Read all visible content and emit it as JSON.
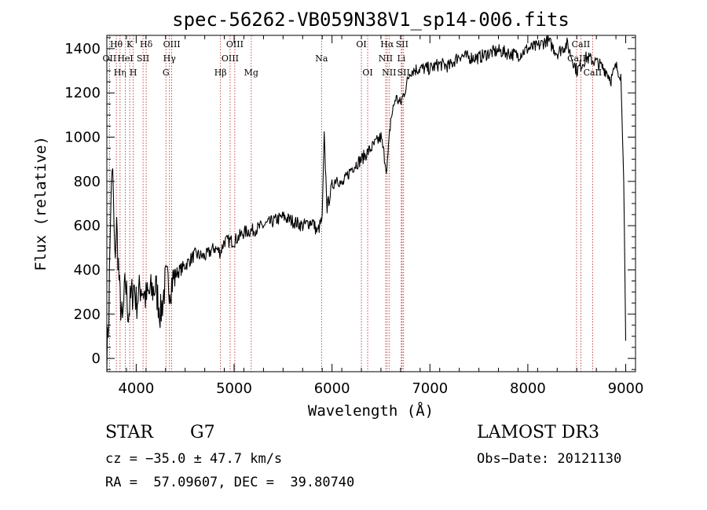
{
  "chart_data": {
    "type": "line",
    "title": "spec-56262-VB059N38V1_sp14-006.fits",
    "xlabel": "Wavelength (Å)",
    "ylabel": "Flux (relative)",
    "xlim": [
      3700,
      9100
    ],
    "ylim": [
      -60,
      1460
    ],
    "xticks": [
      4000,
      5000,
      6000,
      7000,
      8000,
      9000
    ],
    "yticks": [
      0,
      200,
      400,
      600,
      800,
      1000,
      1200,
      1400
    ],
    "series": [
      {
        "name": "flux",
        "x": [
          3700,
          3720,
          3740,
          3760,
          3780,
          3800,
          3830,
          3860,
          3890,
          3920,
          3950,
          3980,
          4000,
          4050,
          4100,
          4150,
          4200,
          4250,
          4300,
          4350,
          4400,
          4500,
          4600,
          4700,
          4800,
          4860,
          4900,
          5000,
          5100,
          5200,
          5300,
          5400,
          5500,
          5600,
          5700,
          5800,
          5850,
          5900,
          5920,
          5950,
          6000,
          6050,
          6100,
          6200,
          6300,
          6400,
          6500,
          6560,
          6600,
          6650,
          6700,
          6750,
          6800,
          6900,
          7000,
          7100,
          7200,
          7300,
          7400,
          7500,
          7600,
          7700,
          7800,
          7900,
          8000,
          8100,
          8200,
          8300,
          8400,
          8500,
          8600,
          8700,
          8800,
          8850,
          8900,
          8950,
          8980,
          9000
        ],
        "y": [
          0,
          200,
          700,
          850,
          450,
          600,
          300,
          150,
          350,
          200,
          280,
          330,
          250,
          330,
          270,
          300,
          320,
          200,
          350,
          330,
          380,
          420,
          470,
          460,
          500,
          480,
          530,
          530,
          570,
          580,
          600,
          620,
          640,
          620,
          600,
          620,
          570,
          630,
          1000,
          680,
          780,
          820,
          780,
          860,
          900,
          950,
          1000,
          850,
          1080,
          1180,
          1150,
          1220,
          1300,
          1310,
          1310,
          1330,
          1320,
          1370,
          1360,
          1360,
          1380,
          1390,
          1380,
          1370,
          1400,
          1410,
          1440,
          1380,
          1420,
          1300,
          1360,
          1340,
          1300,
          1260,
          1320,
          1280,
          800,
          80
        ]
      }
    ],
    "spectral_lines": [
      {
        "x": 3727,
        "label": "OII",
        "row": 1
      },
      {
        "x": 3797,
        "label": "Hθ",
        "row": 0
      },
      {
        "x": 3835,
        "label": "Hη",
        "row": 2
      },
      {
        "x": 3889,
        "label": "HeI",
        "row": 1
      },
      {
        "x": 3934,
        "label": "K",
        "row": 0
      },
      {
        "x": 3970,
        "label": "H",
        "row": 2
      },
      {
        "x": 4070,
        "label": "SII",
        "row": 1
      },
      {
        "x": 4102,
        "label": "Hδ",
        "row": 0
      },
      {
        "x": 4304,
        "label": "G",
        "row": 2
      },
      {
        "x": 4340,
        "label": "Hγ",
        "row": 1
      },
      {
        "x": 4363,
        "label": "OIII",
        "row": 0
      },
      {
        "x": 4861,
        "label": "Hβ",
        "row": 2
      },
      {
        "x": 4959,
        "label": "OIII",
        "row": 1
      },
      {
        "x": 5007,
        "label": "OIII",
        "row": 0
      },
      {
        "x": 5175,
        "label": "Mg",
        "row": 2
      },
      {
        "x": 5893,
        "label": "Na",
        "row": 1
      },
      {
        "x": 6300,
        "label": "OI",
        "row": 0
      },
      {
        "x": 6364,
        "label": "OI",
        "row": 2
      },
      {
        "x": 6548,
        "label": "NII",
        "row": 1
      },
      {
        "x": 6563,
        "label": "Hα",
        "row": 0
      },
      {
        "x": 6583,
        "label": "NII",
        "row": 2
      },
      {
        "x": 6708,
        "label": "Li",
        "row": 1
      },
      {
        "x": 6716,
        "label": "SII",
        "row": 0
      },
      {
        "x": 6731,
        "label": "SII",
        "row": 2
      },
      {
        "x": 8498,
        "label": "CaII",
        "row": 1
      },
      {
        "x": 8542,
        "label": "CaII",
        "row": 0
      },
      {
        "x": 8662,
        "label": "CaII",
        "row": 2
      }
    ]
  },
  "info": {
    "object_type": "STAR",
    "subclass": "G7",
    "survey": "LAMOST DR3",
    "cz": "cz = −35.0 ± 47.7 km/s",
    "obs_date": "Obs−Date: 20121130",
    "coords": "RA =  57.09607, DEC =  39.80740"
  }
}
